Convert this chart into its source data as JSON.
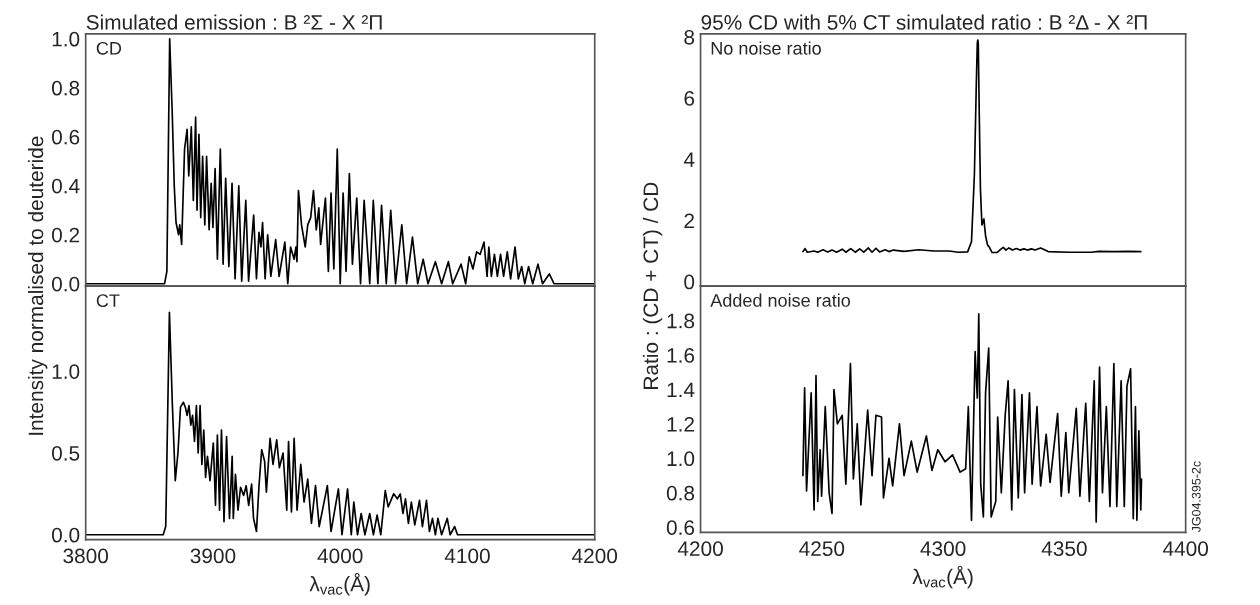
{
  "chart_data": [
    {
      "type": "line",
      "title": "Simulated emission : B ²Σ - X ²Π",
      "ylabel": "Intensity normalised to deuteride",
      "annotations": [
        "CD"
      ],
      "tick_labels": "y",
      "xlim": [
        3800,
        4200
      ],
      "ylim": [
        -0.01,
        1.02
      ],
      "yticks": [
        {
          "value": 0,
          "label": "0.0"
        },
        {
          "value": 0.2,
          "label": "0.2"
        },
        {
          "value": 0.4,
          "label": "0.4"
        },
        {
          "value": 0.6,
          "label": "0.6"
        },
        {
          "value": 0.8,
          "label": "0.8"
        },
        {
          "value": 1.0,
          "label": "1.0"
        }
      ],
      "x": [
        3800,
        3862,
        3863.8,
        3866,
        3868,
        3869.6,
        3871,
        3873,
        3873.9,
        3875.4,
        3877.7,
        3879.7,
        3881,
        3883,
        3884.6,
        3886.4,
        3887.5,
        3889,
        3890.4,
        3891.9,
        3893.6,
        3895,
        3897,
        3898.6,
        3900,
        3901.7,
        3903.5,
        3905.8,
        3908,
        3910,
        3912.5,
        3915,
        3917.4,
        3920.3,
        3922.6,
        3925.8,
        3928,
        3932,
        3934.2,
        3936.2,
        3937.7,
        3939,
        3941,
        3943,
        3945.5,
        3949.3,
        3952,
        3956.5,
        3958.8,
        3961,
        3963.8,
        3965.2,
        3966,
        3967.2,
        3969.6,
        3972.5,
        3974.5,
        3976.8,
        3979,
        3981.2,
        3983.2,
        3984.6,
        3988.4,
        3990.7,
        3992.8,
        3995,
        3997.7,
        4000,
        4002.3,
        4004.6,
        4007.2,
        4009.6,
        4013,
        4016,
        4018.8,
        4023.2,
        4026,
        4029.6,
        4032.5,
        4036.2,
        4039.7,
        4043.5,
        4048.4,
        4052.2,
        4056.8,
        4060.9,
        4065.2,
        4069,
        4074.8,
        4079.7,
        4085,
        4088.4,
        4095,
        4098.6,
        4101.4,
        4104.3,
        4107.2,
        4110,
        4113,
        4115.4,
        4116.8,
        4118.8,
        4121.2,
        4123.5,
        4126,
        4128.4,
        4131.3,
        4133.9,
        4137.4,
        4140,
        4142.6,
        4145,
        4148,
        4151.3,
        4155.4,
        4159,
        4164.3,
        4168,
        4200
      ],
      "series": [
        {
          "color": "#000000",
          "values": [
            0,
            0,
            0.05,
            1.0,
            0.7,
            0.4,
            0.25,
            0.2,
            0.24,
            0.16,
            0.55,
            0.63,
            0.44,
            0.64,
            0.34,
            0.68,
            0.3,
            0.61,
            0.27,
            0.52,
            0.24,
            0.52,
            0.22,
            0.41,
            0.23,
            0.47,
            0.1,
            0.55,
            0.08,
            0.43,
            0.07,
            0.41,
            0.02,
            0.4,
            0.01,
            0.34,
            0.01,
            0.28,
            0.02,
            0.21,
            0.15,
            0.25,
            0.02,
            0.2,
            0.03,
            0.18,
            0.03,
            0.17,
            0,
            0.15,
            0.1,
            0.15,
            0.09,
            0.38,
            0.24,
            0.15,
            0.24,
            0.27,
            0.38,
            0.22,
            0.31,
            0.16,
            0.35,
            0.05,
            0.37,
            0.06,
            0.55,
            0,
            0.37,
            0.05,
            0.45,
            0.08,
            0.35,
            0,
            0.34,
            0,
            0.34,
            0,
            0.32,
            0,
            0.3,
            0,
            0.24,
            0,
            0.19,
            0,
            0.1,
            0,
            0.09,
            0,
            0.09,
            0,
            0.08,
            0,
            0.11,
            0.06,
            0.13,
            0.12,
            0.17,
            0.03,
            0.15,
            0.03,
            0.12,
            0.03,
            0.12,
            0.03,
            0.13,
            0.02,
            0.15,
            0.02,
            0.07,
            0,
            0.07,
            0,
            0.08,
            0,
            0.04,
            0,
            0
          ]
        }
      ]
    },
    {
      "type": "line",
      "xlabel": "λ$_{vac}$(Å)",
      "annotations": [
        "CT"
      ],
      "xlim": [
        3800,
        4200
      ],
      "ylim": [
        -0.03,
        1.52
      ],
      "xticks": [
        3800,
        3900,
        4000,
        4100,
        4200
      ],
      "yticks": [
        {
          "value": 0,
          "label": "0.0"
        },
        {
          "value": 0.5,
          "label": "0.5"
        },
        {
          "value": 1.0,
          "label": "1.0"
        }
      ],
      "x": [
        3800,
        3860.9,
        3862.9,
        3865.8,
        3868.1,
        3870.4,
        3872.5,
        3874.5,
        3876.8,
        3878.3,
        3879.7,
        3881.2,
        3882.6,
        3884,
        3885.5,
        3887,
        3888.4,
        3889.9,
        3891.3,
        3892.8,
        3894.2,
        3895.7,
        3897.7,
        3900.3,
        3902,
        3903.5,
        3905.2,
        3906.7,
        3908.7,
        3910.7,
        3913,
        3915.1,
        3916,
        3917.7,
        3919.7,
        3921.7,
        3924.1,
        3926.1,
        3928.1,
        3930.4,
        3931.9,
        3934.2,
        3936.2,
        3938.3,
        3940.6,
        3942,
        3944.9,
        3947.2,
        3950.1,
        3952.2,
        3955.1,
        3958,
        3959.4,
        3961.7,
        3963.8,
        3966.1,
        3969,
        3971.6,
        3974.5,
        3977.4,
        3980.6,
        3983.5,
        3989.9,
        3992.8,
        3998.6,
        4001.4,
        4005.8,
        4008.7,
        4010.7,
        4013.6,
        4016.5,
        4019.4,
        4023.2,
        4026.1,
        4029,
        4031.9,
        4035.4,
        4037.7,
        4042,
        4044.9,
        4047.2,
        4049.3,
        4051.3,
        4053.6,
        4055.9,
        4058.6,
        4062.3,
        4064.6,
        4067.8,
        4070.1,
        4072.5,
        4074.8,
        4076.8,
        4079.7,
        4084.1,
        4086.4,
        4089.9,
        4092.2,
        4200
      ],
      "series": [
        {
          "color": "#000000",
          "values": [
            0,
            0,
            0.05,
            1.36,
            0.8,
            0.33,
            0.5,
            0.78,
            0.81,
            0.78,
            0.73,
            0.79,
            0.67,
            0.73,
            0.57,
            0.79,
            0.5,
            0.79,
            0.43,
            0.64,
            0.35,
            0.48,
            0.33,
            0.56,
            0.18,
            0.61,
            0.15,
            0.64,
            0.08,
            0.6,
            0.1,
            0.48,
            0.1,
            0.37,
            0.15,
            0.29,
            0.24,
            0.3,
            0.18,
            0.31,
            0.1,
            0.02,
            0.3,
            0.52,
            0.45,
            0.26,
            0.59,
            0.43,
            0.58,
            0.41,
            0.5,
            0.15,
            0.57,
            0.14,
            0.59,
            0.15,
            0.43,
            0.2,
            0.34,
            0.07,
            0.3,
            0.05,
            0.3,
            0.02,
            0.28,
            0,
            0.28,
            0,
            0.2,
            0,
            0.13,
            0,
            0.13,
            0,
            0.12,
            0,
            0.27,
            0.17,
            0.25,
            0.22,
            0.25,
            0.13,
            0.22,
            0.07,
            0.2,
            0.06,
            0.21,
            0.05,
            0.21,
            0.02,
            0.1,
            0,
            0.1,
            0,
            0.1,
            0,
            0.05,
            0,
            0
          ]
        }
      ]
    },
    {
      "type": "line",
      "title": "95% CD with 5% CT simulated ratio : B ²Δ - X ²Π",
      "ylabel": "Ratio : (CD + CT) / CD",
      "annotations": [
        "No noise ratio"
      ],
      "tick_labels": "y",
      "xlim": [
        4200,
        4400
      ],
      "ylim": [
        -0.15,
        8.1
      ],
      "yticks": [
        0,
        2,
        4,
        6,
        8
      ],
      "x": [
        4242.2,
        4243.1,
        4244,
        4246.8,
        4248.3,
        4250.5,
        4252.4,
        4254.2,
        4256.1,
        4258.4,
        4259.9,
        4261.9,
        4263.8,
        4265.6,
        4267.3,
        4269.2,
        4270.7,
        4272.3,
        4273.8,
        4276.1,
        4277.7,
        4279.5,
        4283.9,
        4290,
        4296.2,
        4302.4,
        4306.3,
        4310.1,
        4311.7,
        4312.9,
        4313.7,
        4314.1,
        4314.3,
        4314.5,
        4314.9,
        4315.4,
        4316,
        4316.8,
        4317.5,
        4318.3,
        4319.1,
        4320.2,
        4322.2,
        4323.7,
        4324.8,
        4325.9,
        4327.1,
        4328.6,
        4330.2,
        4331.7,
        4333.3,
        4334.8,
        4336.4,
        4337.9,
        4340.2,
        4341.8,
        4343.3,
        4351.8,
        4361.1,
        4364.2,
        4370.3,
        4376.5,
        4381.5
      ],
      "series": [
        {
          "color": "#000000",
          "values": [
            0.98,
            1.08,
            0.96,
            1.0,
            0.96,
            1.04,
            0.97,
            1.03,
            0.96,
            1.06,
            0.96,
            1.08,
            0.96,
            1.07,
            0.96,
            1.1,
            0.96,
            1.09,
            0.97,
            1.04,
            0.98,
            1.03,
            0.99,
            1.04,
            1.0,
            1.0,
            0.96,
            0.97,
            1.3,
            3.5,
            6.5,
            7.8,
            7.9,
            7.8,
            5.5,
            3.0,
            1.85,
            2.05,
            1.5,
            1.2,
            1.12,
            0.95,
            0.95,
            1.05,
            1.12,
            1.03,
            1.1,
            1.03,
            1.08,
            1.03,
            1.07,
            1.03,
            1.07,
            1.03,
            1.1,
            1.04,
            0.98,
            0.96,
            0.96,
            0.99,
            0.98,
            0.99,
            0.98
          ]
        }
      ]
    },
    {
      "type": "line",
      "xlabel": "λ$_{vac}$(Å)",
      "annotations": [
        "Added noise ratio",
        "JG04.395-2c"
      ],
      "xlim": [
        4200,
        4400
      ],
      "ylim": [
        0.57,
        2.0
      ],
      "xticks": [
        4200,
        4250,
        4300,
        4350,
        4400
      ],
      "yticks": [
        {
          "value": 0.6,
          "label": "0.6"
        },
        {
          "value": 0.8,
          "label": "0.8"
        },
        {
          "value": 1.0,
          "label": "1.0"
        },
        {
          "value": 1.2,
          "label": "1.2"
        },
        {
          "value": 1.4,
          "label": "1.4"
        },
        {
          "value": 1.6,
          "label": "1.6"
        },
        {
          "value": 1.8,
          "label": "1.8"
        }
      ],
      "x": [
        4242.2,
        4242.9,
        4243.7,
        4245.6,
        4246.8,
        4247.6,
        4248.3,
        4249.3,
        4249.9,
        4251.4,
        4253.0,
        4254.2,
        4255.0,
        4256.4,
        4258.4,
        4259.9,
        4261.8,
        4263.0,
        4264.6,
        4266.1,
        4268.9,
        4270.7,
        4272.3,
        4274.6,
        4275.4,
        4277.7,
        4279.2,
        4282.0,
        4283.9,
        4286.9,
        4289.3,
        4293.1,
        4295.4,
        4297.8,
        4300.8,
        4303.9,
        4307.0,
        4309.3,
        4310.4,
        4311.7,
        4313.2,
        4314.1,
        4314.7,
        4315.5,
        4316.6,
        4317.5,
        4318.8,
        4319.8,
        4321.7,
        4322.5,
        4324.0,
        4325.6,
        4326.8,
        4328.3,
        4329.4,
        4331.0,
        4332.5,
        4333.6,
        4335.6,
        4336.7,
        4338.7,
        4340.2,
        4342.5,
        4344.1,
        4347.2,
        4348.7,
        4350.6,
        4351.8,
        4354.9,
        4356.4,
        4358.8,
        4360.3,
        4362.3,
        4363.1,
        4364.5,
        4365.7,
        4367.3,
        4368.8,
        4370.4,
        4371.6,
        4373.4,
        4374.7,
        4375.8,
        4377.3,
        4378.4,
        4379.3,
        4379.9,
        4380.7,
        4381.5,
        4381.8
      ],
      "series": [
        {
          "color": "#000000",
          "values": [
            0.9,
            1.41,
            0.81,
            1.38,
            0.7,
            1.48,
            0.75,
            1.05,
            0.78,
            1.3,
            0.8,
            0.68,
            1.4,
            1.2,
            1.25,
            0.85,
            1.55,
            0.88,
            1.2,
            0.73,
            1.28,
            0.9,
            1.25,
            1.24,
            0.77,
            1.0,
            0.84,
            1.2,
            0.9,
            1.1,
            0.92,
            1.13,
            0.93,
            1.05,
            0.98,
            1.02,
            0.92,
            0.94,
            1.3,
            0.64,
            1.62,
            1.35,
            1.84,
            0.85,
            0.66,
            1.38,
            1.64,
            0.66,
            0.75,
            1.24,
            0.8,
            1.25,
            1.45,
            0.7,
            1.4,
            0.77,
            1.37,
            0.8,
            1.38,
            0.85,
            1.3,
            0.84,
            1.14,
            0.86,
            1.26,
            0.78,
            1.15,
            0.8,
            1.29,
            0.78,
            1.32,
            0.75,
            1.45,
            0.63,
            1.53,
            0.8,
            1.3,
            0.72,
            1.55,
            0.72,
            1.45,
            0.72,
            1.42,
            1.52,
            0.65,
            1.3,
            0.64,
            1.16,
            0.7,
            0.88
          ]
        }
      ]
    }
  ]
}
